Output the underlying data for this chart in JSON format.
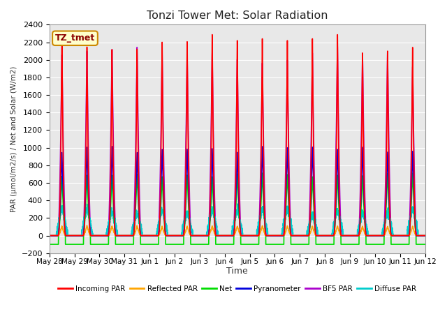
{
  "title": "Tonzi Tower Met: Solar Radiation",
  "ylabel": "PAR (μmol/m2/s) / Net and Solar (W/m2)",
  "xlabel": "Time",
  "ylim": [
    -200,
    2400
  ],
  "annotation_text": "TZ_tmet",
  "background_color": "#e8e8e8",
  "grid_color": "#ffffff",
  "num_days": 15,
  "day_labels": [
    "May 28",
    "May 29",
    "May 30",
    "May 31",
    "Jun 1",
    "Jun 2",
    "Jun 3",
    "Jun 4",
    "Jun 5",
    "Jun 6",
    "Jun 7",
    "Jun 8",
    "Jun 9",
    "Jun 10",
    "Jun 11",
    "Jun 12"
  ],
  "series": [
    {
      "name": "Incoming PAR",
      "color": "#ff0000",
      "lw": 1.2
    },
    {
      "name": "Reflected PAR",
      "color": "#ffa500",
      "lw": 1.2
    },
    {
      "name": "Net",
      "color": "#00dd00",
      "lw": 1.2
    },
    {
      "name": "Pyranometer",
      "color": "#0000dd",
      "lw": 1.2
    },
    {
      "name": "BF5 PAR",
      "color": "#aa00cc",
      "lw": 1.2
    },
    {
      "name": "Diffuse PAR",
      "color": "#00cccc",
      "lw": 1.2
    }
  ]
}
